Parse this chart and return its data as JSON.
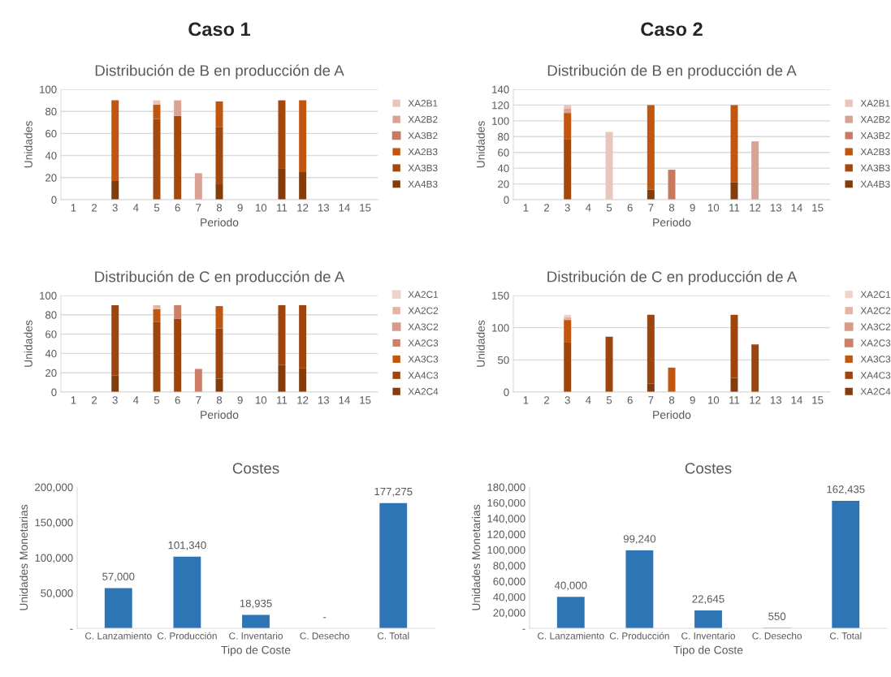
{
  "chart_data": [
    {
      "type": "bar",
      "title": "Distribución de B en producción de A",
      "annotations": [
        "Caso 1"
      ],
      "xlabel": "Periodo",
      "ylabel": "Unidades",
      "stacked": true,
      "grid": "y",
      "legend": "right",
      "categories": [
        "1",
        "2",
        "3",
        "4",
        "5",
        "6",
        "7",
        "8",
        "9",
        "10",
        "11",
        "12",
        "13",
        "14",
        "15"
      ],
      "ylim": [
        0,
        100
      ],
      "yticks": [
        0,
        20,
        40,
        60,
        80,
        100
      ],
      "series": [
        {
          "name": "XA4B3",
          "color": "#843c0c",
          "values": [
            null,
            null,
            17,
            null,
            null,
            null,
            null,
            14,
            null,
            null,
            28,
            25,
            null,
            null,
            null
          ]
        },
        {
          "name": "XA3B3",
          "color": "#a4490e",
          "values": [
            null,
            null,
            null,
            null,
            73,
            76,
            null,
            52,
            null,
            null,
            62,
            null,
            null,
            null,
            null
          ]
        },
        {
          "name": "XA2B3",
          "color": "#c0560f",
          "values": [
            null,
            null,
            73,
            null,
            13,
            null,
            null,
            23,
            null,
            null,
            null,
            65,
            null,
            null,
            null
          ]
        },
        {
          "name": "XA3B2",
          "color": "#c87a60",
          "values": [
            null,
            null,
            null,
            null,
            null,
            null,
            null,
            null,
            null,
            null,
            null,
            null,
            null,
            null,
            null
          ]
        },
        {
          "name": "XA2B2",
          "color": "#d9a293",
          "values": [
            null,
            null,
            null,
            null,
            null,
            14,
            24,
            null,
            null,
            null,
            null,
            null,
            null,
            null,
            null
          ]
        },
        {
          "name": "XA2B1",
          "color": "#e8c6bb",
          "values": [
            null,
            null,
            null,
            null,
            4,
            null,
            null,
            null,
            null,
            null,
            null,
            null,
            null,
            null,
            null
          ]
        }
      ]
    },
    {
      "type": "bar",
      "title": "Distribución de B en producción de A",
      "annotations": [
        "Caso 2"
      ],
      "xlabel": "Periodo",
      "ylabel": "Unidades",
      "stacked": true,
      "grid": "y",
      "legend": "right",
      "categories": [
        "1",
        "2",
        "3",
        "4",
        "5",
        "6",
        "7",
        "8",
        "9",
        "10",
        "11",
        "12",
        "13",
        "14",
        "15"
      ],
      "ylim": [
        0,
        140
      ],
      "yticks": [
        0,
        20,
        40,
        60,
        80,
        100,
        120,
        140
      ],
      "series": [
        {
          "name": "XA4B3",
          "color": "#843c0c",
          "values": [
            null,
            null,
            null,
            null,
            null,
            null,
            13,
            null,
            null,
            null,
            22,
            null,
            null,
            null,
            null
          ]
        },
        {
          "name": "XA3B3",
          "color": "#a4490e",
          "values": [
            null,
            null,
            77,
            null,
            null,
            null,
            null,
            null,
            null,
            null,
            null,
            null,
            null,
            null,
            null
          ]
        },
        {
          "name": "XA2B3",
          "color": "#c0560f",
          "values": [
            null,
            null,
            33,
            null,
            null,
            null,
            107,
            null,
            null,
            null,
            98,
            null,
            null,
            null,
            null
          ]
        },
        {
          "name": "XA3B2",
          "color": "#c87a60",
          "values": [
            null,
            null,
            null,
            null,
            null,
            null,
            null,
            38,
            null,
            null,
            null,
            null,
            null,
            null,
            null
          ]
        },
        {
          "name": "XA2B2",
          "color": "#d9a293",
          "values": [
            null,
            null,
            6,
            null,
            null,
            null,
            null,
            null,
            null,
            null,
            null,
            74,
            null,
            null,
            null
          ]
        },
        {
          "name": "XA2B1",
          "color": "#e8c6bb",
          "values": [
            null,
            null,
            4,
            null,
            86,
            null,
            null,
            null,
            null,
            null,
            null,
            null,
            null,
            null,
            null
          ]
        }
      ]
    },
    {
      "type": "bar",
      "title": "Distribución de C en producción de A",
      "xlabel": "Periodo",
      "ylabel": "Unidades",
      "stacked": true,
      "grid": "y",
      "legend": "right",
      "categories": [
        "1",
        "2",
        "3",
        "4",
        "5",
        "6",
        "7",
        "8",
        "9",
        "10",
        "11",
        "12",
        "13",
        "14",
        "15"
      ],
      "ylim": [
        0,
        100
      ],
      "yticks": [
        0,
        20,
        40,
        60,
        80,
        100
      ],
      "series": [
        {
          "name": "XA2C4",
          "color": "#843c0c",
          "values": [
            null,
            null,
            17,
            null,
            null,
            null,
            null,
            14,
            null,
            null,
            28,
            25,
            null,
            null,
            null
          ]
        },
        {
          "name": "XA4C3",
          "color": "#9e450d",
          "values": [
            null,
            null,
            73,
            null,
            73,
            76,
            null,
            52,
            null,
            null,
            62,
            65,
            null,
            null,
            null
          ]
        },
        {
          "name": "XA3C3",
          "color": "#c0560f",
          "values": [
            null,
            null,
            null,
            null,
            13,
            null,
            null,
            23,
            null,
            null,
            null,
            null,
            null,
            null,
            null
          ]
        },
        {
          "name": "XA2C3",
          "color": "#cc806a",
          "values": [
            null,
            null,
            null,
            null,
            null,
            14,
            24,
            null,
            null,
            null,
            null,
            null,
            null,
            null,
            null
          ]
        },
        {
          "name": "XA3C2",
          "color": "#d99a88",
          "values": [
            null,
            null,
            null,
            null,
            null,
            null,
            null,
            null,
            null,
            null,
            null,
            null,
            null,
            null,
            null
          ]
        },
        {
          "name": "XA2C2",
          "color": "#e3b3a5",
          "values": [
            null,
            null,
            null,
            null,
            4,
            null,
            null,
            null,
            null,
            null,
            null,
            null,
            null,
            null,
            null
          ]
        },
        {
          "name": "XA2C1",
          "color": "#eed3ca",
          "values": [
            null,
            null,
            null,
            null,
            null,
            null,
            null,
            null,
            null,
            null,
            null,
            null,
            null,
            null,
            null
          ]
        }
      ]
    },
    {
      "type": "bar",
      "title": "Distribución de C en producción de A",
      "xlabel": "Periodo",
      "ylabel": "Unidades",
      "stacked": true,
      "grid": "y",
      "legend": "right",
      "categories": [
        "1",
        "2",
        "3",
        "4",
        "5",
        "6",
        "7",
        "8",
        "9",
        "10",
        "11",
        "12",
        "13",
        "14",
        "15"
      ],
      "ylim": [
        0,
        150
      ],
      "yticks": [
        0,
        50,
        100,
        150
      ],
      "series": [
        {
          "name": "XA2C4",
          "color": "#843c0c",
          "values": [
            null,
            null,
            null,
            null,
            null,
            null,
            13,
            null,
            null,
            null,
            22,
            null,
            null,
            null,
            null
          ]
        },
        {
          "name": "XA4C3",
          "color": "#9e450d",
          "values": [
            null,
            null,
            77,
            null,
            86,
            null,
            107,
            null,
            null,
            null,
            98,
            74,
            null,
            null,
            null
          ]
        },
        {
          "name": "XA3C3",
          "color": "#c0560f",
          "values": [
            null,
            null,
            35,
            null,
            null,
            null,
            null,
            38,
            null,
            null,
            null,
            null,
            null,
            null,
            null
          ]
        },
        {
          "name": "XA2C3",
          "color": "#cc806a",
          "values": [
            null,
            null,
            null,
            null,
            null,
            null,
            null,
            null,
            null,
            null,
            null,
            null,
            null,
            null,
            null
          ]
        },
        {
          "name": "XA3C2",
          "color": "#d99a88",
          "values": [
            null,
            null,
            null,
            null,
            null,
            null,
            null,
            null,
            null,
            null,
            null,
            null,
            null,
            null,
            null
          ]
        },
        {
          "name": "XA2C2",
          "color": "#e3b3a5",
          "values": [
            null,
            null,
            4,
            null,
            null,
            null,
            null,
            null,
            null,
            null,
            null,
            null,
            null,
            null,
            null
          ]
        },
        {
          "name": "XA2C1",
          "color": "#eed3ca",
          "values": [
            null,
            null,
            4,
            null,
            null,
            null,
            null,
            null,
            null,
            null,
            null,
            null,
            null,
            null,
            null
          ]
        }
      ]
    },
    {
      "type": "bar",
      "title": "Costes",
      "xlabel": "Tipo de Coste",
      "ylabel": "Unidades Monetarias",
      "color": "#2e75b6",
      "categories": [
        "C. Lanzamiento",
        "C. Producción",
        "C. Inventario",
        "C. Desecho",
        "C. Total"
      ],
      "values": [
        57000,
        101340,
        18935,
        0,
        177275
      ],
      "value_labels": [
        "57,000",
        "101,340",
        "18,935",
        "-",
        "177,275"
      ],
      "ylim": [
        0,
        200000
      ],
      "yticks": [
        {
          "value": 0,
          "label": "-"
        },
        {
          "value": 50000,
          "label": "50,000"
        },
        {
          "value": 100000,
          "label": "100,000"
        },
        {
          "value": 150000,
          "label": "150,000"
        },
        {
          "value": 200000,
          "label": "200,000"
        }
      ]
    },
    {
      "type": "bar",
      "title": "Costes",
      "xlabel": "Tipo de Coste",
      "ylabel": "Unidades Monetarias",
      "color": "#2e75b6",
      "categories": [
        "C. Lanzamiento",
        "C. Producción",
        "C. Inventario",
        "C. Desecho",
        "C. Total"
      ],
      "values": [
        40000,
        99240,
        22645,
        550,
        162435
      ],
      "value_labels": [
        "40,000",
        "99,240",
        "22,645",
        "550",
        "162,435"
      ],
      "ylim": [
        0,
        180000
      ],
      "yticks": [
        {
          "value": 0,
          "label": "-"
        },
        {
          "value": 20000,
          "label": "20,000"
        },
        {
          "value": 40000,
          "label": "40,000"
        },
        {
          "value": 60000,
          "label": "60,000"
        },
        {
          "value": 80000,
          "label": "80,000"
        },
        {
          "value": 100000,
          "label": "100,000"
        },
        {
          "value": 120000,
          "label": "120,000"
        },
        {
          "value": 140000,
          "label": "140,000"
        },
        {
          "value": 160000,
          "label": "160,000"
        },
        {
          "value": 180000,
          "label": "180,000"
        }
      ]
    }
  ]
}
